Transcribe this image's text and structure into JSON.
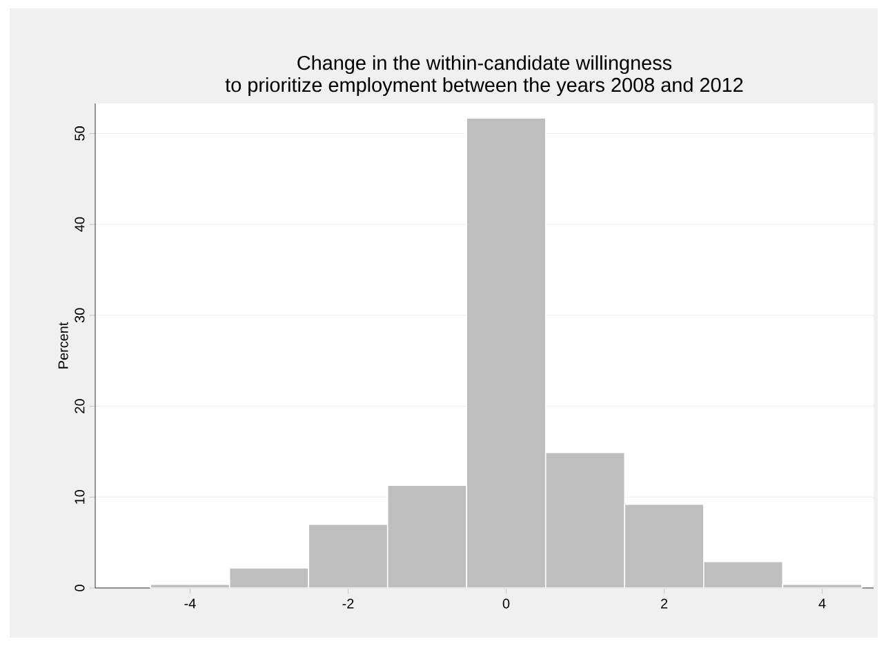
{
  "chart_data": {
    "type": "histogram",
    "title": "Change in the within-candidate willingness",
    "subtitle": "to prioritize employment between the years 2008 and 2012",
    "ylabel": "Percent",
    "bins": [
      -4.5,
      -3.5,
      -2.5,
      -1.5,
      -0.5,
      0.5,
      1.5,
      2.5,
      3.5,
      4.5
    ],
    "values": [
      0.4,
      2.2,
      7.0,
      11.3,
      51.7,
      14.9,
      9.2,
      2.9,
      0.4
    ],
    "color": "#bebebe",
    "xlim": [
      -5.2,
      4.65
    ],
    "xticks": [
      -4,
      -2,
      0,
      2,
      4
    ],
    "ylim": [
      0,
      53.3
    ],
    "yticks": [
      0,
      10,
      20,
      30,
      40,
      50
    ],
    "grid": "y"
  }
}
